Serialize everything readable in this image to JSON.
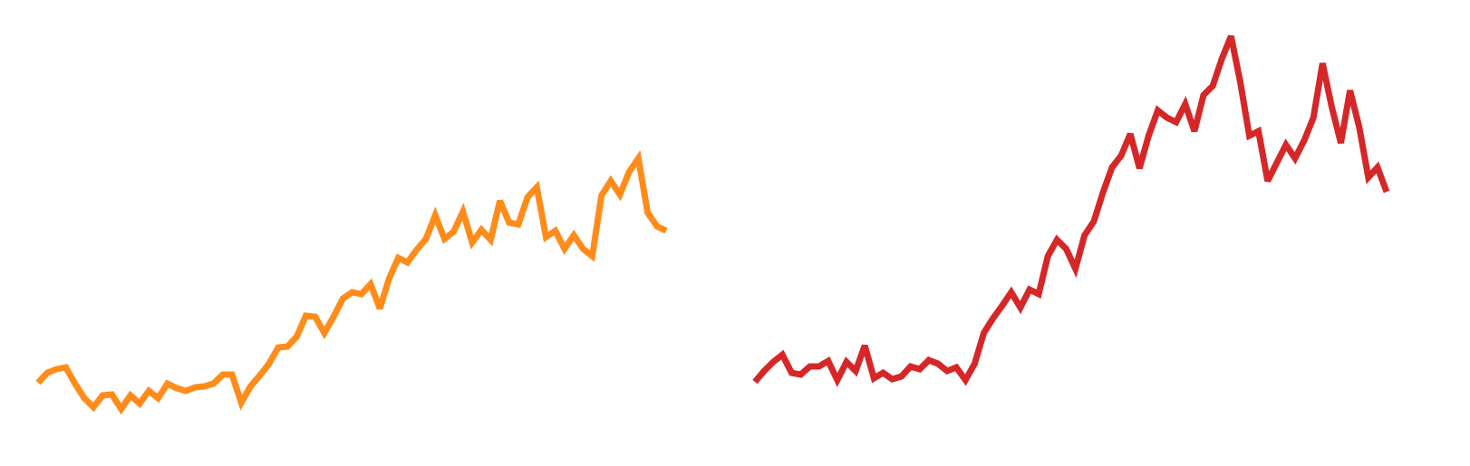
{
  "chart_data": [
    {
      "type": "line",
      "color": "#ff8c1a",
      "ylim": [
        0,
        500
      ],
      "values": [
        77,
        88,
        92,
        94,
        76,
        60,
        50,
        63,
        64,
        48,
        63,
        54,
        68,
        60,
        76,
        71,
        68,
        72,
        73,
        76,
        86,
        86,
        55,
        73,
        85,
        98,
        116,
        117,
        128,
        151,
        150,
        132,
        150,
        170,
        177,
        175,
        186,
        159,
        192,
        215,
        210,
        224,
        236,
        262,
        236,
        244,
        266,
        232,
        246,
        235,
        278,
        254,
        252,
        282,
        293,
        238,
        245,
        225,
        240,
        225,
        217,
        284,
        300,
        285,
        310,
        325,
        265,
        250,
        245
      ]
    },
    {
      "type": "line",
      "color": "#d62728",
      "ylim": [
        0,
        500
      ],
      "values": [
        78,
        90,
        100,
        108,
        88,
        86,
        95,
        95,
        101,
        80,
        100,
        90,
        118,
        82,
        88,
        81,
        84,
        95,
        92,
        102,
        98,
        90,
        94,
        80,
        98,
        132,
        148,
        162,
        177,
        160,
        180,
        175,
        217,
        235,
        225,
        203,
        240,
        255,
        287,
        315,
        328,
        352,
        314,
        350,
        378,
        370,
        365,
        385,
        355,
        395,
        405,
        435,
        460,
        410,
        350,
        355,
        300,
        320,
        340,
        325,
        345,
        370,
        430,
        382,
        342,
        400,
        360,
        304,
        315,
        288
      ]
    }
  ]
}
